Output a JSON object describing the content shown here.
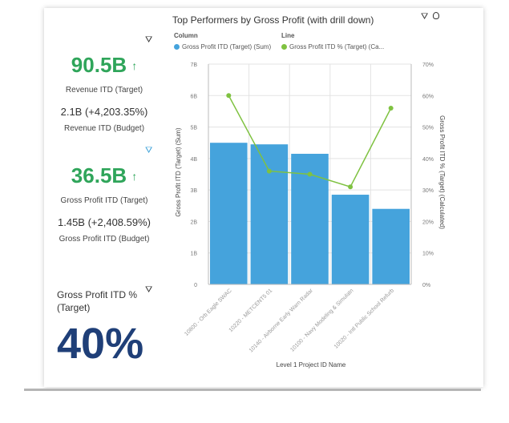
{
  "kpis": [
    {
      "value": "90.5B",
      "label": "Revenue ITD (Target)",
      "sub_value": "2.1B (+4,203.35%)",
      "sub_label": "Revenue ITD (Budget)"
    },
    {
      "value": "36.5B",
      "label": "Gross Profit ITD (Target)",
      "sub_value": "1.45B (+2,408.59%)",
      "sub_label": "Gross Profit ITD (Budget)"
    }
  ],
  "icons": {
    "up_arrow": "↑",
    "filter": "⛛",
    "lightbulb": "💡"
  },
  "percent_card": {
    "title": "Gross Profit ITD % (Target)",
    "value": "40%"
  },
  "legend": {
    "column_title": "Column",
    "column_item": "Gross Profit ITD (Target) (Sum)",
    "line_title": "Line",
    "line_item": "Gross Profit ITD % (Target) (Ca..."
  },
  "colors": {
    "bar": "#45a3dc",
    "line": "#7fc241",
    "kpi": "#2fa55a",
    "big_pct": "#1f3f78"
  },
  "chart_data": {
    "type": "bar",
    "title": "Top Performers by Gross Profit (with drill down)",
    "xlabel": "Level 1 Project ID Name",
    "ylabel": "Gross Profit ITD (Target) (Sum)",
    "y2label": "Gross Profit ITD % (Target) (Calculated)",
    "categories": [
      "10800 - Orb Eagle SWAC",
      "10220 - METCENT5 01",
      "10140 - Airborne Early Warn Radar",
      "10100 - Navy Modeling & Simulatn",
      "10020 - Intl Public School Refurb"
    ],
    "series": [
      {
        "name": "Gross Profit ITD (Target) (Sum)",
        "type": "bar",
        "values": [
          4.5,
          4.45,
          4.15,
          2.85,
          2.4
        ]
      },
      {
        "name": "Gross Profit ITD % (Target) (Calculated)",
        "type": "line",
        "values": [
          60,
          36,
          35,
          31,
          56
        ]
      }
    ],
    "ylim": [
      0,
      7
    ],
    "y_ticks": [
      "0",
      "1B",
      "2B",
      "3B",
      "4B",
      "5B",
      "6B",
      "7B"
    ],
    "y2lim": [
      0,
      70
    ],
    "y2_ticks": [
      "0%",
      "10%",
      "20%",
      "30%",
      "40%",
      "50%",
      "60%",
      "70%"
    ],
    "grid": true,
    "legend": "top-left"
  }
}
